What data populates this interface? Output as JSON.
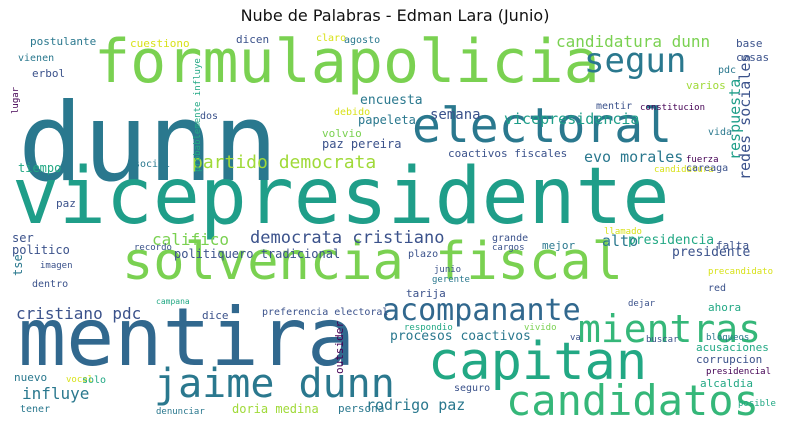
{
  "title": "Nube de Palabras - Edman Lara (Junio)",
  "palette": {
    "yellow": "#d8e21a",
    "lime": "#7ad151",
    "green": "#22a884",
    "teal": "#1f9e89",
    "blue": "#2a788e",
    "navy": "#414487",
    "purple": "#440154"
  },
  "words": [
    {
      "text": "dunn",
      "color": "#2a788e"
    },
    {
      "text": "vicepresidente",
      "color": "#1f9e89"
    },
    {
      "text": "formulapolicia",
      "color": "#7ad151"
    },
    {
      "text": "mentira",
      "color": "#31688e"
    },
    {
      "text": "solvencia fiscal",
      "color": "#7ad151"
    },
    {
      "text": "electoral",
      "color": "#2a788e"
    },
    {
      "text": "capitan",
      "color": "#22a884"
    },
    {
      "text": "candidatos",
      "color": "#35b779"
    },
    {
      "text": "jaime dunn",
      "color": "#2a788e"
    },
    {
      "text": "mientras",
      "color": "#35b779"
    },
    {
      "text": "acompanante",
      "color": "#31688e"
    },
    {
      "text": "segun",
      "color": "#2a788e"
    },
    {
      "text": "candidatura dunn",
      "color": "#7ad151"
    },
    {
      "text": "partido democrata",
      "color": "#a0da39"
    },
    {
      "text": "democrata cristiano",
      "color": "#3b528b"
    },
    {
      "text": "cristiano pdc",
      "color": "#3b528b"
    },
    {
      "text": "vicepresidencia",
      "color": "#1f9e89"
    },
    {
      "text": "evo morales",
      "color": "#2a788e"
    },
    {
      "text": "redes sociales",
      "color": "#3b528b"
    },
    {
      "text": "respuesta",
      "color": "#1f9e89"
    },
    {
      "text": "semana",
      "color": "#3b528b"
    },
    {
      "text": "encuesta",
      "color": "#2a788e"
    },
    {
      "text": "califico",
      "color": "#7ad151"
    },
    {
      "text": "alto",
      "color": "#2a788e"
    },
    {
      "text": "presidencia",
      "color": "#22a884"
    },
    {
      "text": "presidente",
      "color": "#3b528b"
    },
    {
      "text": "influye",
      "color": "#2a788e"
    },
    {
      "text": "rodrigo paz",
      "color": "#2a788e"
    },
    {
      "text": "procesos coactivos",
      "color": "#2a788e"
    },
    {
      "text": "corrupcion",
      "color": "#3b528b"
    },
    {
      "text": "paz pereira",
      "color": "#3b528b"
    },
    {
      "text": "coactivos fiscales",
      "color": "#3b528b"
    },
    {
      "text": "politiquero tradicional",
      "color": "#3b528b"
    },
    {
      "text": "cuestiono",
      "color": "#d8e21a"
    },
    {
      "text": "postulante",
      "color": "#2a788e"
    },
    {
      "text": "dicen",
      "color": "#3b528b"
    },
    {
      "text": "claro",
      "color": "#d8e21a"
    },
    {
      "text": "agosto",
      "color": "#2a788e"
    },
    {
      "text": "base",
      "color": "#3b528b"
    },
    {
      "text": "cosas",
      "color": "#3b528b"
    },
    {
      "text": "varios",
      "color": "#a0da39"
    },
    {
      "text": "pdc",
      "color": "#2a788e"
    },
    {
      "text": "vienen",
      "color": "#2a788e"
    },
    {
      "text": "erbol",
      "color": "#3b528b"
    },
    {
      "text": "lugar",
      "color": "#440154"
    },
    {
      "text": "probablemente influye",
      "color": "#22a884"
    },
    {
      "text": "debido",
      "color": "#d8e21a"
    },
    {
      "text": "papeleta",
      "color": "#2a788e"
    },
    {
      "text": "volvio",
      "color": "#7ad151"
    },
    {
      "text": "mentir",
      "color": "#3b528b"
    },
    {
      "text": "constitucion",
      "color": "#440154"
    },
    {
      "text": "dos",
      "color": "#3b528b"
    },
    {
      "text": "vida",
      "color": "#2a788e"
    },
    {
      "text": "tiempo",
      "color": "#22a884"
    },
    {
      "text": "social",
      "color": "#2a788e"
    },
    {
      "text": "fuerza",
      "color": "#440154"
    },
    {
      "text": "candidatura",
      "color": "#d8e21a"
    },
    {
      "text": "careaga",
      "color": "#3b528b"
    },
    {
      "text": "paz",
      "color": "#3b528b"
    },
    {
      "text": "ser",
      "color": "#3b528b"
    },
    {
      "text": "politico",
      "color": "#3b528b"
    },
    {
      "text": "tse",
      "color": "#2a788e"
    },
    {
      "text": "recordo",
      "color": "#3b528b"
    },
    {
      "text": "grande",
      "color": "#3b528b"
    },
    {
      "text": "cargos",
      "color": "#3b528b"
    },
    {
      "text": "llamado",
      "color": "#d8e21a"
    },
    {
      "text": "mejor",
      "color": "#2a788e"
    },
    {
      "text": "falta",
      "color": "#3b528b"
    },
    {
      "text": "imagen",
      "color": "#3b528b"
    },
    {
      "text": "plazo",
      "color": "#3b528b"
    },
    {
      "text": "junio",
      "color": "#3b528b"
    },
    {
      "text": "dentro",
      "color": "#3b528b"
    },
    {
      "text": "precandidato",
      "color": "#d8e21a"
    },
    {
      "text": "campana",
      "color": "#22a884"
    },
    {
      "text": "gerente",
      "color": "#2a788e"
    },
    {
      "text": "tarija",
      "color": "#3b528b"
    },
    {
      "text": "red",
      "color": "#3b528b"
    },
    {
      "text": "dejar",
      "color": "#3b528b"
    },
    {
      "text": "ahora",
      "color": "#22a884"
    },
    {
      "text": "dice",
      "color": "#3b528b"
    },
    {
      "text": "preferencia electoral",
      "color": "#3b528b"
    },
    {
      "text": "respondio",
      "color": "#22a884"
    },
    {
      "text": "vivido",
      "color": "#7ad151"
    },
    {
      "text": "va",
      "color": "#3b528b"
    },
    {
      "text": "acusaciones",
      "color": "#22a884"
    },
    {
      "text": "buscar",
      "color": "#3b528b"
    },
    {
      "text": "bloqueos",
      "color": "#2a788e"
    },
    {
      "text": "outsider",
      "color": "#440154"
    },
    {
      "text": "nuevo",
      "color": "#2a788e"
    },
    {
      "text": "vocal",
      "color": "#d8e21a"
    },
    {
      "text": "solo",
      "color": "#22a884"
    },
    {
      "text": "presidencial",
      "color": "#440154"
    },
    {
      "text": "alcaldia",
      "color": "#22a884"
    },
    {
      "text": "seguro",
      "color": "#3b528b"
    },
    {
      "text": "tener",
      "color": "#2a788e"
    },
    {
      "text": "denunciar",
      "color": "#2a788e"
    },
    {
      "text": "doria medina",
      "color": "#a0da39"
    },
    {
      "text": "persona",
      "color": "#2a788e"
    },
    {
      "text": "posible",
      "color": "#22a884"
    }
  ]
}
